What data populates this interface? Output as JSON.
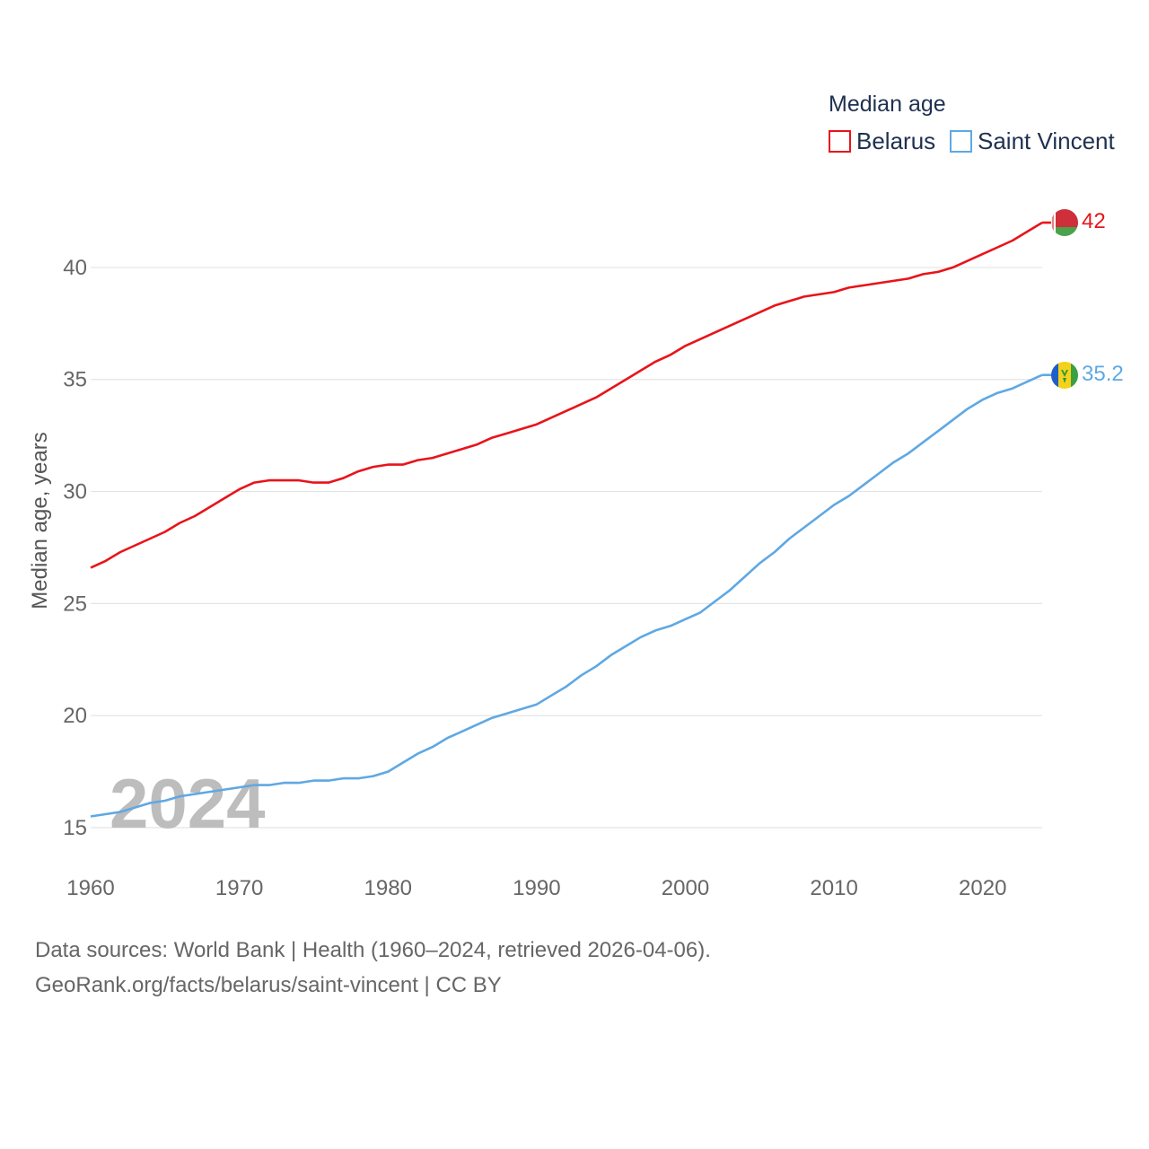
{
  "chart_data": {
    "type": "line",
    "title": "Median age",
    "ylabel": "Median age, years",
    "xlabel": "",
    "xlim": [
      1960,
      2024
    ],
    "ylim": [
      15,
      42
    ],
    "x_ticks": [
      1960,
      1970,
      1980,
      1990,
      2000,
      2010,
      2020
    ],
    "y_ticks": [
      15,
      20,
      25,
      30,
      35,
      40
    ],
    "grid": true,
    "legend_position": "top-right",
    "year_marker": "2024",
    "series": [
      {
        "name": "Belarus",
        "color": "#e8141a",
        "end_label": "42",
        "flag": "belarus-flag-icon",
        "x": [
          1960,
          1961,
          1962,
          1963,
          1964,
          1965,
          1966,
          1967,
          1968,
          1969,
          1970,
          1971,
          1972,
          1973,
          1974,
          1975,
          1976,
          1977,
          1978,
          1979,
          1980,
          1981,
          1982,
          1983,
          1984,
          1985,
          1986,
          1987,
          1988,
          1989,
          1990,
          1991,
          1992,
          1993,
          1994,
          1995,
          1996,
          1997,
          1998,
          1999,
          2000,
          2001,
          2002,
          2003,
          2004,
          2005,
          2006,
          2007,
          2008,
          2009,
          2010,
          2011,
          2012,
          2013,
          2014,
          2015,
          2016,
          2017,
          2018,
          2019,
          2020,
          2021,
          2022,
          2023,
          2024
        ],
        "values": [
          26.6,
          26.9,
          27.3,
          27.6,
          27.9,
          28.2,
          28.6,
          28.9,
          29.3,
          29.7,
          30.1,
          30.4,
          30.5,
          30.5,
          30.5,
          30.4,
          30.4,
          30.6,
          30.9,
          31.1,
          31.2,
          31.2,
          31.4,
          31.5,
          31.7,
          31.9,
          32.1,
          32.4,
          32.6,
          32.8,
          33.0,
          33.3,
          33.6,
          33.9,
          34.2,
          34.6,
          35.0,
          35.4,
          35.8,
          36.1,
          36.5,
          36.8,
          37.1,
          37.4,
          37.7,
          38.0,
          38.3,
          38.5,
          38.7,
          38.8,
          38.9,
          39.1,
          39.2,
          39.3,
          39.4,
          39.5,
          39.7,
          39.8,
          40.0,
          40.3,
          40.6,
          40.9,
          41.2,
          41.6,
          42.0
        ]
      },
      {
        "name": "Saint Vincent",
        "color": "#5fa8e3",
        "end_label": "35.2",
        "flag": "saint-vincent-flag-icon",
        "x": [
          1960,
          1961,
          1962,
          1963,
          1964,
          1965,
          1966,
          1967,
          1968,
          1969,
          1970,
          1971,
          1972,
          1973,
          1974,
          1975,
          1976,
          1977,
          1978,
          1979,
          1980,
          1981,
          1982,
          1983,
          1984,
          1985,
          1986,
          1987,
          1988,
          1989,
          1990,
          1991,
          1992,
          1993,
          1994,
          1995,
          1996,
          1997,
          1998,
          1999,
          2000,
          2001,
          2002,
          2003,
          2004,
          2005,
          2006,
          2007,
          2008,
          2009,
          2010,
          2011,
          2012,
          2013,
          2014,
          2015,
          2016,
          2017,
          2018,
          2019,
          2020,
          2021,
          2022,
          2023,
          2024
        ],
        "values": [
          15.5,
          15.6,
          15.7,
          15.9,
          16.1,
          16.2,
          16.4,
          16.5,
          16.6,
          16.7,
          16.8,
          16.9,
          16.9,
          17.0,
          17.0,
          17.1,
          17.1,
          17.2,
          17.2,
          17.3,
          17.5,
          17.9,
          18.3,
          18.6,
          19.0,
          19.3,
          19.6,
          19.9,
          20.1,
          20.3,
          20.5,
          20.9,
          21.3,
          21.8,
          22.2,
          22.7,
          23.1,
          23.5,
          23.8,
          24.0,
          24.3,
          24.6,
          25.1,
          25.6,
          26.2,
          26.8,
          27.3,
          27.9,
          28.4,
          28.9,
          29.4,
          29.8,
          30.3,
          30.8,
          31.3,
          31.7,
          32.2,
          32.7,
          33.2,
          33.7,
          34.1,
          34.4,
          34.6,
          34.9,
          35.2
        ]
      }
    ]
  },
  "footer": {
    "sources": "Data sources: World Bank | Health (1960–2024, retrieved 2026-04-06).",
    "link": "GeoRank.org/facts/belarus/saint-vincent | CC BY"
  }
}
